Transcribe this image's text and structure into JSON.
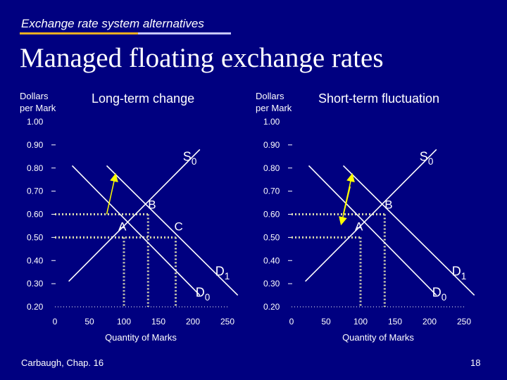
{
  "header": {
    "topic": "Exchange rate system alternatives",
    "title": "Managed floating exchange rates"
  },
  "footer": {
    "source": "Carbaugh, Chap. 16",
    "page": "18"
  },
  "colors": {
    "background": "#000080",
    "curve": "#ffffff",
    "arrow": "#ffff00",
    "accent": "#f0b020"
  },
  "chart_data": [
    {
      "type": "line",
      "title": "Long-term change",
      "ylabel": "Dollars per Mark",
      "xlabel": "Quantity of Marks",
      "xlim": [
        0,
        250
      ],
      "ylim": [
        0.2,
        1.0
      ],
      "x_ticks": [
        "0",
        "50",
        "100",
        "150",
        "200",
        "250"
      ],
      "y_ticks": [
        "1.00",
        "0.90",
        "0.80",
        "0.70",
        "0.60",
        "0.50",
        "0.40",
        "0.30",
        "0.20"
      ],
      "series": [
        {
          "name": "S0",
          "points": [
            [
              20,
              0.31
            ],
            [
              210,
              0.88
            ]
          ]
        },
        {
          "name": "D0",
          "points": [
            [
              25,
              0.81
            ],
            [
              210,
              0.25
            ]
          ]
        },
        {
          "name": "D1",
          "points": [
            [
              75,
              0.81
            ],
            [
              265,
              0.25
            ]
          ]
        }
      ],
      "points": [
        {
          "label": "A",
          "x": 100,
          "y": 0.5
        },
        {
          "label": "B",
          "x": 135,
          "y": 0.6
        },
        {
          "label": "C",
          "x": 175,
          "y": 0.5
        }
      ],
      "arrow": {
        "from": [
          75,
          0.6
        ],
        "to": [
          87,
          0.76
        ]
      }
    },
    {
      "type": "line",
      "title": "Short-term fluctuation",
      "ylabel": "Dollars per Mark",
      "xlabel": "Quantity of Marks",
      "xlim": [
        0,
        250
      ],
      "ylim": [
        0.2,
        1.0
      ],
      "x_ticks": [
        "0",
        "50",
        "100",
        "150",
        "200",
        "250"
      ],
      "y_ticks": [
        "1.00",
        "0.90",
        "0.80",
        "0.70",
        "0.60",
        "0.50",
        "0.40",
        "0.30",
        "0.20"
      ],
      "series": [
        {
          "name": "S0",
          "points": [
            [
              20,
              0.31
            ],
            [
              210,
              0.88
            ]
          ]
        },
        {
          "name": "D0",
          "points": [
            [
              25,
              0.81
            ],
            [
              210,
              0.25
            ]
          ]
        },
        {
          "name": "D1",
          "points": [
            [
              75,
              0.81
            ],
            [
              265,
              0.25
            ]
          ]
        }
      ],
      "points": [
        {
          "label": "A",
          "x": 100,
          "y": 0.5
        },
        {
          "label": "B",
          "x": 135,
          "y": 0.6
        }
      ],
      "arrows": [
        {
          "from": [
            75,
            0.6
          ],
          "to": [
            87,
            0.76
          ]
        },
        {
          "from": [
            85,
            0.72
          ],
          "to": [
            73,
            0.57
          ]
        }
      ]
    }
  ]
}
